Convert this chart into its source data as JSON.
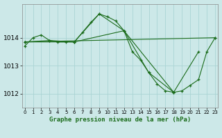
{
  "title": "Graphe pression niveau de la mer (hPa)",
  "bg_color": "#cce8e8",
  "grid_color": "#aad4d4",
  "line_color": "#1a6b1a",
  "marker_color": "#1a6b1a",
  "series": [
    {
      "x": [
        0,
        1,
        2,
        3,
        4,
        5,
        6,
        7,
        8,
        9,
        10,
        11,
        12,
        13,
        14,
        15,
        16,
        17,
        18,
        19,
        20,
        21,
        22,
        23
      ],
      "y": [
        1013.7,
        1014.0,
        1014.1,
        1013.9,
        1013.85,
        1013.85,
        1013.85,
        1014.2,
        1014.55,
        1014.85,
        1014.75,
        1014.6,
        1014.25,
        1013.5,
        1013.2,
        1012.75,
        1012.35,
        1012.1,
        1012.05,
        1012.1,
        1012.3,
        1012.5,
        1013.5,
        1014.0
      ]
    },
    {
      "x": [
        0,
        3,
        6,
        9,
        12,
        15,
        18,
        21
      ],
      "y": [
        1013.85,
        1013.9,
        1013.85,
        1014.85,
        1014.25,
        1012.75,
        1012.05,
        1013.5
      ]
    },
    {
      "x": [
        0,
        6,
        12,
        18
      ],
      "y": [
        1013.85,
        1013.85,
        1014.25,
        1012.05
      ]
    },
    {
      "x": [
        0,
        23
      ],
      "y": [
        1013.85,
        1014.0
      ]
    }
  ],
  "yticks": [
    1012,
    1013,
    1014
  ],
  "ylim": [
    1011.5,
    1015.2
  ],
  "xlim": [
    -0.3,
    23.3
  ],
  "xticks": [
    0,
    1,
    2,
    3,
    4,
    5,
    6,
    7,
    8,
    9,
    10,
    11,
    12,
    13,
    14,
    15,
    16,
    17,
    18,
    19,
    20,
    21,
    22,
    23
  ],
  "xlabel_fontsize": 6.5,
  "ytick_fontsize": 6.5,
  "xtick_fontsize": 5.0
}
